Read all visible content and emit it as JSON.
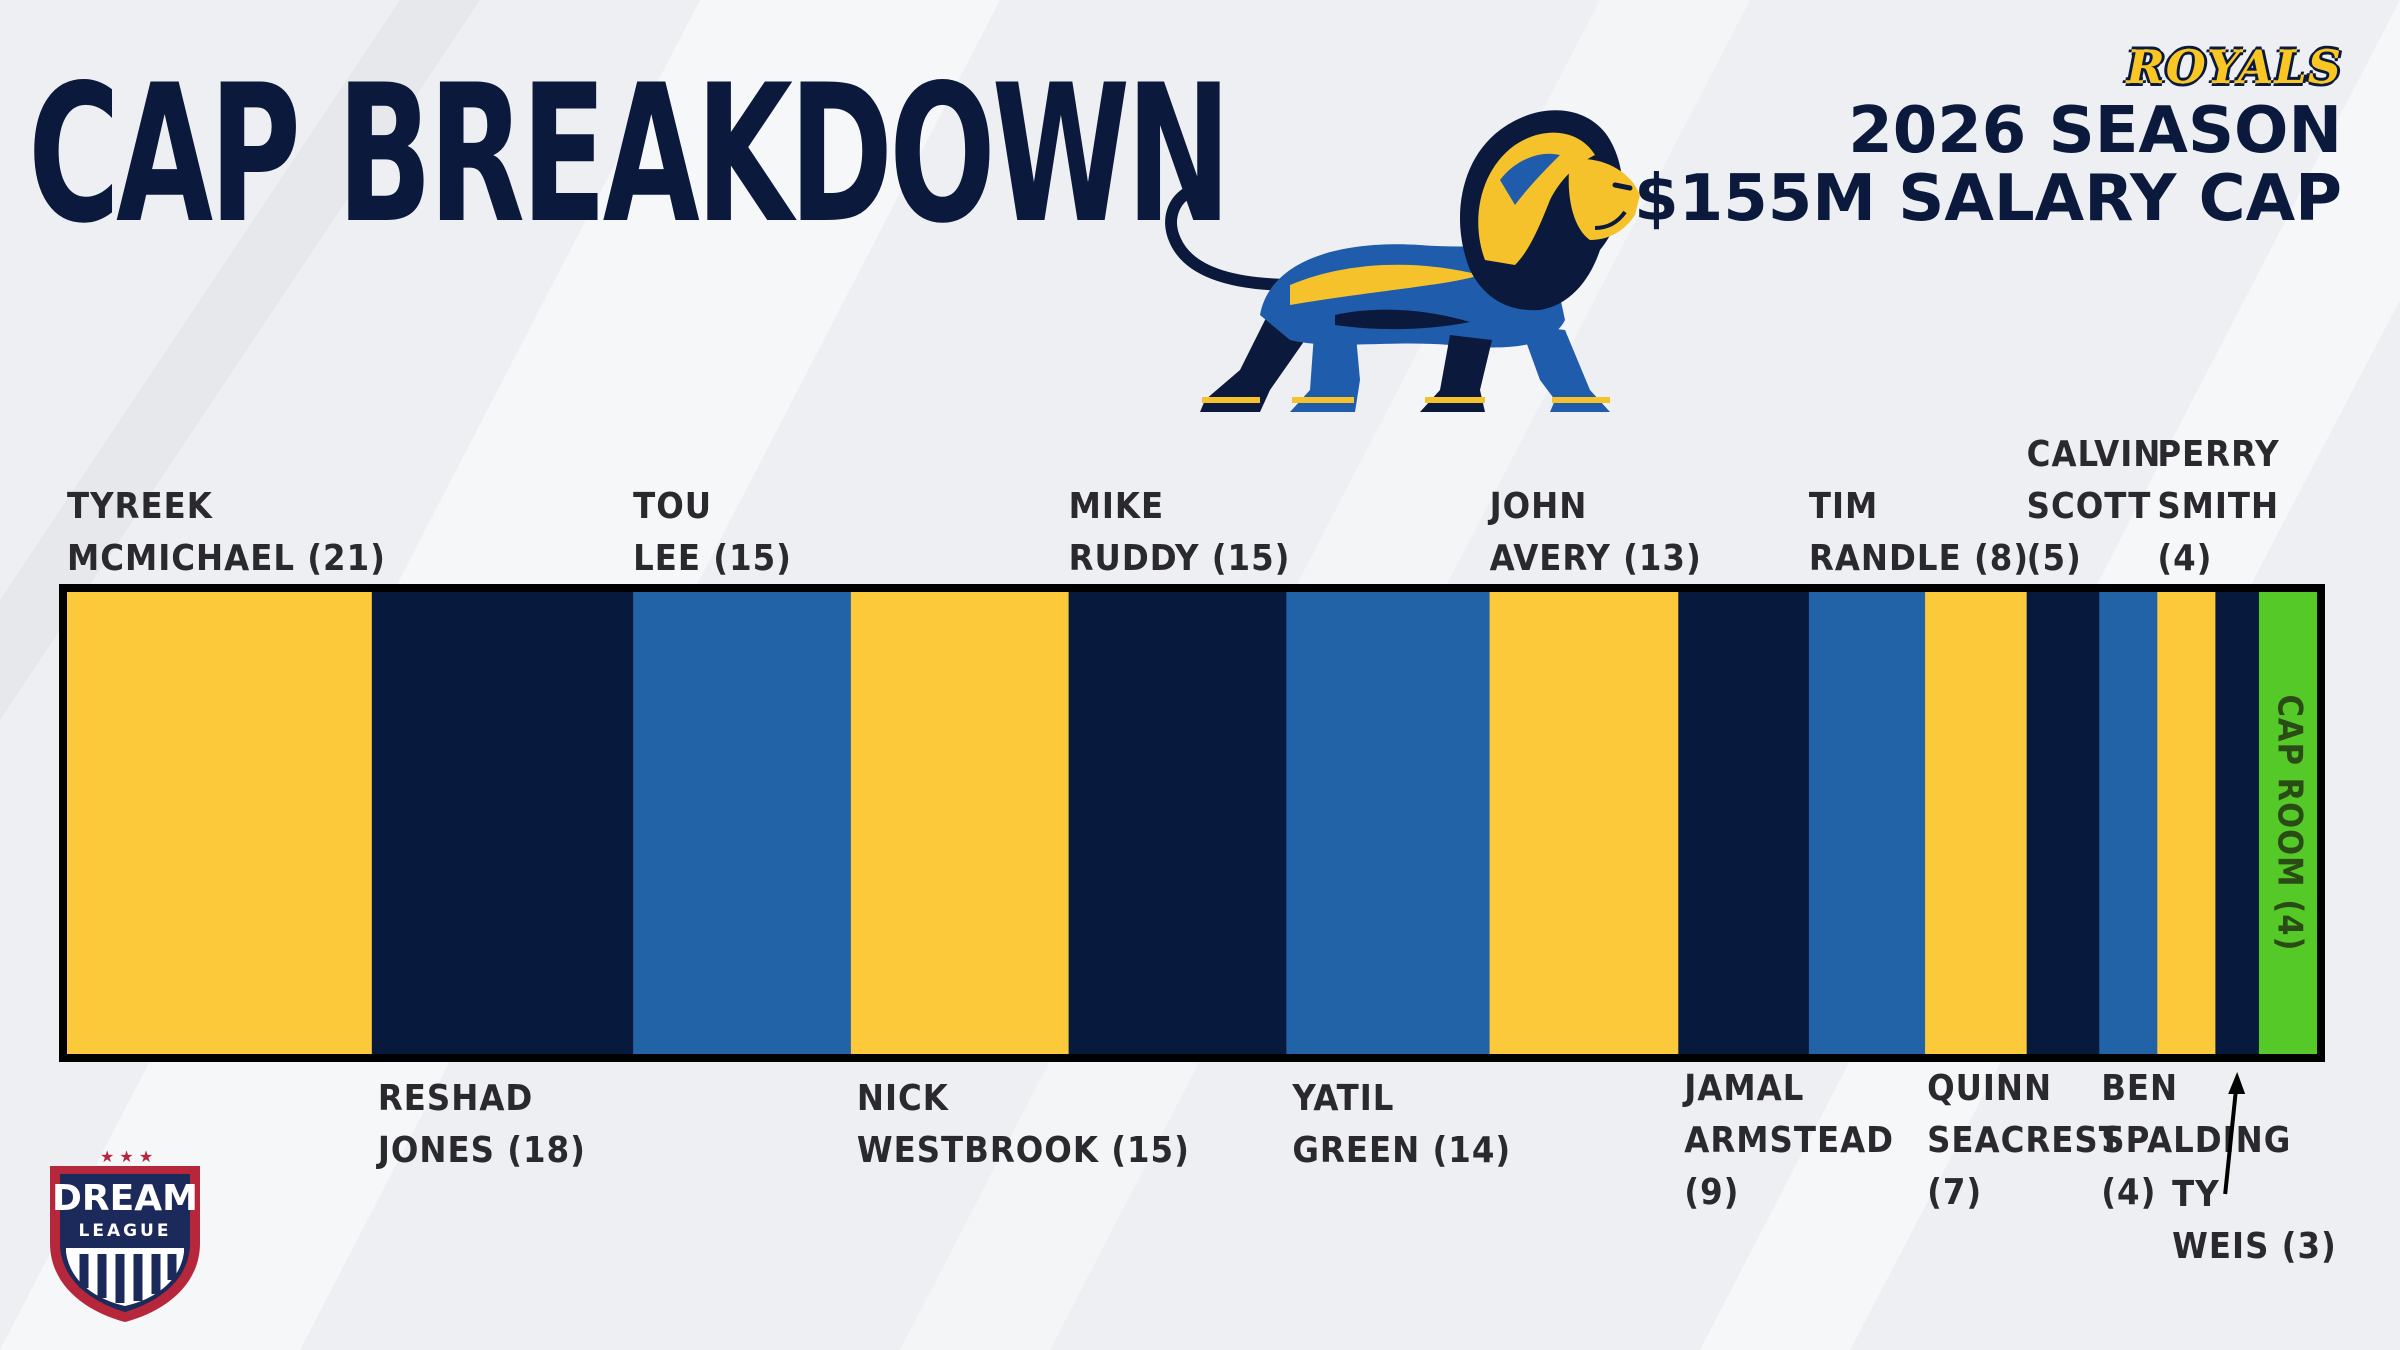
{
  "header": {
    "title": "CAP BREAKDOWN",
    "brand": "ROYALS",
    "season": "2026 SEASON",
    "salary_cap": "$155M SALARY CAP"
  },
  "logo": {
    "name": "lion-icon",
    "league_line1": "DREAM",
    "league_line2": "LEAGUE"
  },
  "colors": {
    "gold": "#fcc93a",
    "navy": "#071a3d",
    "blue": "#2262a6",
    "green": "#55c928",
    "background": "#eeeff2"
  },
  "chart_data": {
    "type": "bar",
    "orientation": "horizontal-stacked",
    "total": 155,
    "unit": "$M",
    "segments": [
      {
        "name": "TYREEK MCMICHAEL",
        "value": 21,
        "color": "gold",
        "label_lines": [
          "TYREEK",
          "MCMICHAEL (21)"
        ],
        "label_position": "top"
      },
      {
        "name": "RESHAD JONES",
        "value": 18,
        "color": "navy",
        "label_lines": [
          "RESHAD",
          "JONES (18)"
        ],
        "label_position": "bottom"
      },
      {
        "name": "TOU LEE",
        "value": 15,
        "color": "blue",
        "label_lines": [
          "TOU",
          "LEE (15)"
        ],
        "label_position": "top"
      },
      {
        "name": "NICK WESTBROOK",
        "value": 15,
        "color": "gold",
        "label_lines": [
          "NICK",
          "WESTBROOK (15)"
        ],
        "label_position": "bottom"
      },
      {
        "name": "MIKE RUDDY",
        "value": 15,
        "color": "navy",
        "label_lines": [
          "MIKE",
          "RUDDY (15)"
        ],
        "label_position": "top"
      },
      {
        "name": "YATIL GREEN",
        "value": 14,
        "color": "blue",
        "label_lines": [
          "YATIL",
          "GREEN (14)"
        ],
        "label_position": "bottom"
      },
      {
        "name": "JOHN AVERY",
        "value": 13,
        "color": "gold",
        "label_lines": [
          "JOHN",
          "AVERY (13)"
        ],
        "label_position": "top"
      },
      {
        "name": "JAMAL ARMSTEAD",
        "value": 9,
        "color": "navy",
        "label_lines": [
          "JAMAL",
          "ARMSTEAD",
          "(9)"
        ],
        "label_position": "bottom"
      },
      {
        "name": "TIM RANDLE",
        "value": 8,
        "color": "blue",
        "label_lines": [
          "TIM",
          "RANDLE (8)"
        ],
        "label_position": "top"
      },
      {
        "name": "QUINN SEACREST",
        "value": 7,
        "color": "gold",
        "label_lines": [
          "QUINN",
          "SEACREST",
          "(7)"
        ],
        "label_position": "bottom"
      },
      {
        "name": "CALVIN SCOTT",
        "value": 5,
        "color": "navy",
        "label_lines": [
          "CALVIN",
          "SCOTT",
          "(5)"
        ],
        "label_position": "top"
      },
      {
        "name": "BEN SPALDING",
        "value": 4,
        "color": "blue",
        "label_lines": [
          "BEN",
          "SPALDING",
          "(4)"
        ],
        "label_position": "bottom"
      },
      {
        "name": "PERRY SMITH",
        "value": 4,
        "color": "gold",
        "label_lines": [
          "PERRY",
          "SMITH",
          "(4)"
        ],
        "label_position": "top"
      },
      {
        "name": "TY WEIS",
        "value": 3,
        "color": "navy",
        "label_lines": [
          "TY",
          "WEIS (3)"
        ],
        "label_position": "bottom-arrow"
      },
      {
        "name": "CAP ROOM",
        "value": 4,
        "color": "green",
        "label_lines": [
          "CAP ROOM (4)"
        ],
        "label_position": "inside-vertical"
      }
    ]
  }
}
